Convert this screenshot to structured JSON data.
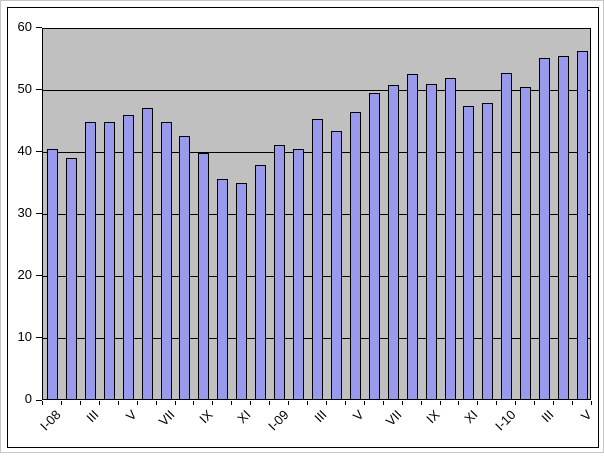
{
  "chart_data": {
    "type": "bar",
    "title": "",
    "xlabel": "",
    "ylabel": "",
    "n_bars": 29,
    "values": [
      40.4,
      38.8,
      44.7,
      44.6,
      45.8,
      47.0,
      44.7,
      42.4,
      39.6,
      35.5,
      34.9,
      37.7,
      41.0,
      40.3,
      45.1,
      43.3,
      46.3,
      49.4,
      50.7,
      52.4,
      50.8,
      51.7,
      47.3,
      47.7,
      52.5,
      50.4,
      55.0,
      55.4,
      56.2
    ],
    "x_visible_tick_labels": [
      "I-08",
      "III",
      "V",
      "VII",
      "IX",
      "XI",
      "I-09",
      "III",
      "V",
      "VII",
      "IX",
      "XI",
      "I-10",
      "III",
      "V"
    ],
    "x_label_every": 2,
    "x_label_start_index": 0,
    "yticks": [
      0,
      10,
      20,
      30,
      40,
      50,
      60
    ],
    "ylim": [
      0,
      60
    ],
    "grid": "horizontal-major",
    "legend": "none",
    "colors": {
      "bar_fill": "#9a9aec",
      "bar_border": "#000000",
      "plot_bg": "#c0c0c0",
      "gridline": "#000000",
      "axis_text": "#000000",
      "frame_border": "#000000"
    }
  }
}
